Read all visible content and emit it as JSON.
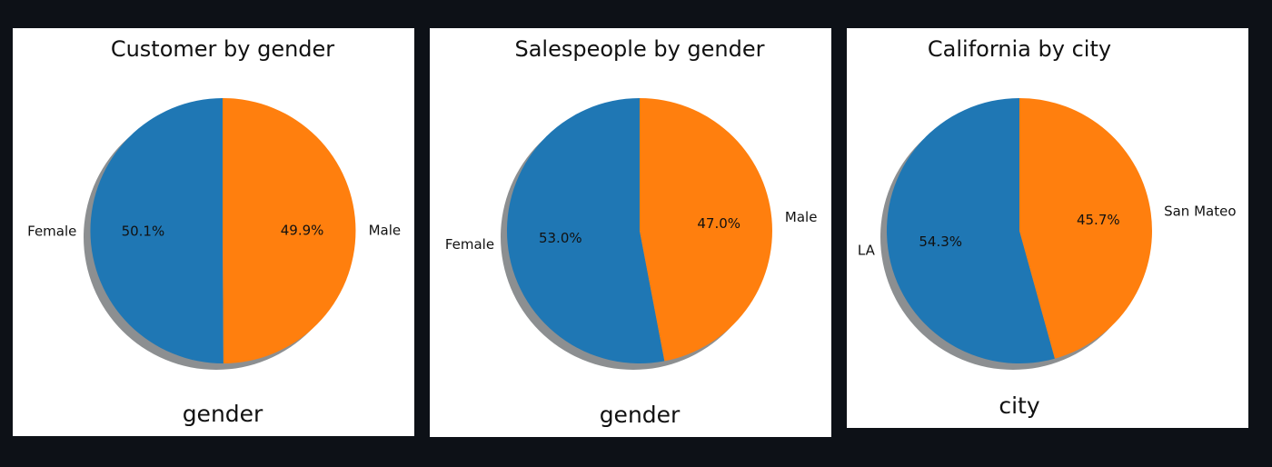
{
  "chart_data": [
    {
      "type": "pie",
      "title": "Customer by gender",
      "xlabel": "gender",
      "labels": [
        "Female",
        "Male"
      ],
      "values": [
        50.1,
        49.9
      ],
      "value_labels": [
        "50.1%",
        "49.9%"
      ],
      "colors": [
        "#1f77b4",
        "#ff7f0e"
      ],
      "shadow": true
    },
    {
      "type": "pie",
      "title": "Salespeople by gender",
      "xlabel": "gender",
      "labels": [
        "Female",
        "Male"
      ],
      "values": [
        53.0,
        47.0
      ],
      "value_labels": [
        "53.0%",
        "47.0%"
      ],
      "colors": [
        "#1f77b4",
        "#ff7f0e"
      ],
      "shadow": true
    },
    {
      "type": "pie",
      "title": "California by city",
      "xlabel": "city",
      "labels": [
        "LA",
        "San Mateo"
      ],
      "values": [
        54.3,
        45.7
      ],
      "value_labels": [
        "54.3%",
        "45.7%"
      ],
      "colors": [
        "#1f77b4",
        "#ff7f0e"
      ],
      "shadow": true
    }
  ]
}
